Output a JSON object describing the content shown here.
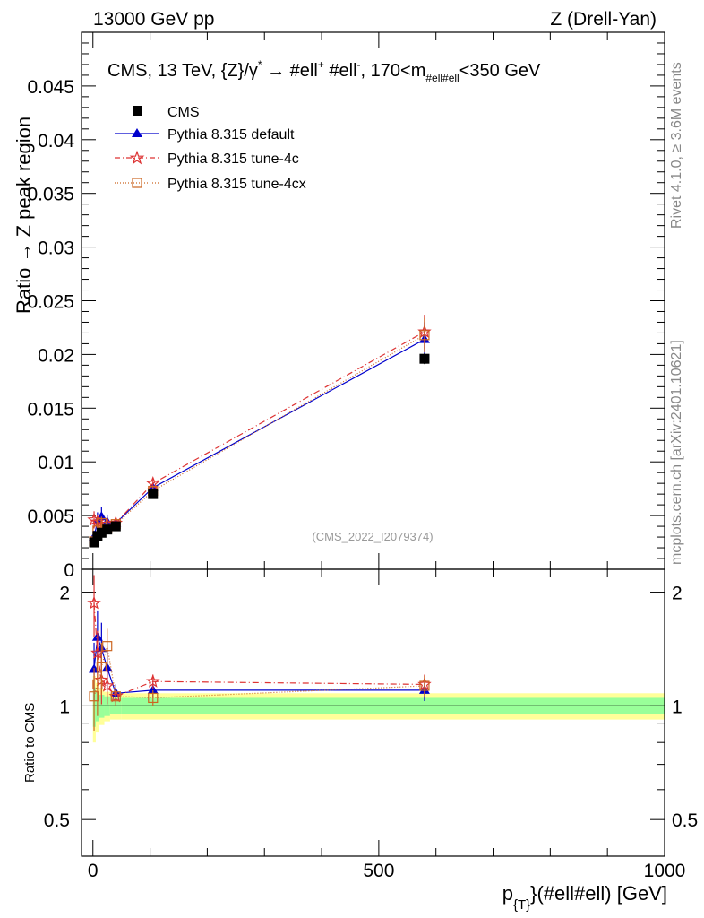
{
  "header": {
    "left": "13000 GeV pp",
    "right": "Z (Drell-Yan)"
  },
  "side_labels": {
    "rivet": "Rivet 4.1.0, ≥ 3.6M events",
    "mcplots": "mcplots.cern.ch [arXiv:2401.10621]"
  },
  "watermark": "(CMS_2022_I2079374)",
  "colors": {
    "cms": "#000000",
    "default": "#0000cc",
    "tune4c": "#dd3333",
    "tune4cx": "#cc6622",
    "band_inner": "#99ff99",
    "band_outer": "#ffff99"
  },
  "chart_data": [
    {
      "type": "scatter",
      "title": "CMS, 13 TeV, {Z}/γ* → #ell⁺ #ell⁻, 170<m_{#ell#ell}<350 GeV",
      "title_parts": {
        "main": "CMS, 13 TeV, {Z}/γ",
        "star": "*",
        "arrow": "→",
        "ell": "#ell",
        "plus": "+",
        "ell2": "#ell",
        "minus": "-",
        "range": ", 170<m",
        "sub": "#ell#ell",
        "end": "<350 GeV"
      },
      "ylabel": "Ratio → Z peak region",
      "xlim": [
        -20,
        1000
      ],
      "ylim": [
        0,
        0.05
      ],
      "yticks": [
        0,
        0.005,
        0.01,
        0.015,
        0.02,
        0.025,
        0.03,
        0.035,
        0.04,
        0.045
      ],
      "ytick_labels": [
        "0",
        "0.005",
        "0.01",
        "0.015",
        "0.02",
        "0.025",
        "0.03",
        "0.035",
        "0.04",
        "0.045"
      ],
      "legend_position": "top-left",
      "series": [
        {
          "name": "CMS",
          "key": "cms",
          "marker": "square",
          "x": [
            2,
            8,
            15,
            25,
            40,
            105,
            580
          ],
          "y": [
            0.0025,
            0.0031,
            0.0034,
            0.0037,
            0.004,
            0.007,
            0.0196
          ],
          "err": [
            0.0002,
            0.0002,
            0.0002,
            0.0002,
            0.0002,
            0.0003,
            0.0005
          ]
        },
        {
          "name": "Pythia 8.315 default",
          "key": "default",
          "marker": "triangle",
          "x": [
            2,
            8,
            15,
            25,
            40,
            105,
            580
          ],
          "y": [
            0.003,
            0.0045,
            0.0049,
            0.0044,
            0.0043,
            0.0076,
            0.0214
          ],
          "err": [
            0.0006,
            0.0008,
            0.0009,
            0.0007,
            0.0003,
            0.0004,
            0.0016
          ]
        },
        {
          "name": "Pythia 8.315 tune-4c",
          "key": "tune4c",
          "marker": "star",
          "x": [
            2,
            8,
            15,
            25,
            40,
            105,
            580
          ],
          "y": [
            0.0046,
            0.0044,
            0.004,
            0.0042,
            0.0043,
            0.008,
            0.0221
          ],
          "err": [
            0.0008,
            0.0006,
            0.0006,
            0.0005,
            0.0003,
            0.0004,
            0.0016
          ]
        },
        {
          "name": "Pythia 8.315 tune-4cx",
          "key": "tune4cx",
          "marker": "open-square",
          "x": [
            2,
            8,
            15,
            25,
            40,
            105,
            580
          ],
          "y": [
            0.0026,
            0.0036,
            0.0043,
            0.0038,
            0.0042,
            0.0073,
            0.0218
          ],
          "err": [
            0.0004,
            0.0005,
            0.0006,
            0.0005,
            0.0003,
            0.0004,
            0.0016
          ]
        }
      ]
    },
    {
      "type": "line",
      "title": "",
      "ylabel": "Ratio to CMS",
      "xlabel": "p_{T}(#ell#ell) [GeV]",
      "xlabel_parts": {
        "p": "p",
        "sub": "{T}",
        "rest": "}(#ell#ell) [GeV]"
      },
      "xlim": [
        -20,
        1000
      ],
      "ylim": [
        0.4,
        2.3
      ],
      "xticks": [
        0,
        500,
        1000
      ],
      "xtick_labels": [
        "0",
        "500",
        "1000"
      ],
      "yticks": [
        0.5,
        1,
        2
      ],
      "ytick_labels": [
        "0.5",
        "1",
        "2"
      ],
      "reference_line": 1,
      "band": {
        "x_edges": [
          0,
          5,
          10,
          20,
          30,
          50,
          1000
        ],
        "inner": [
          0.12,
          0.09,
          0.07,
          0.06,
          0.05,
          0.05
        ],
        "outer": [
          0.2,
          0.15,
          0.11,
          0.09,
          0.08,
          0.08
        ]
      },
      "series": [
        {
          "name": "Pythia 8.315 default",
          "key": "default",
          "marker": "triangle",
          "x": [
            2,
            8,
            15,
            25,
            40,
            105,
            580
          ],
          "y": [
            1.25,
            1.52,
            1.42,
            1.26,
            1.08,
            1.1,
            1.1
          ],
          "err": [
            0.22,
            0.27,
            0.24,
            0.16,
            0.06,
            0.05,
            0.07
          ]
        },
        {
          "name": "Pythia 8.315 tune-4c",
          "key": "tune4c",
          "marker": "star",
          "x": [
            2,
            8,
            15,
            25,
            40,
            105,
            580
          ],
          "y": [
            1.87,
            1.38,
            1.17,
            1.13,
            1.06,
            1.16,
            1.14
          ],
          "err": [
            0.35,
            0.2,
            0.16,
            0.12,
            0.06,
            0.05,
            0.07
          ]
        },
        {
          "name": "Pythia 8.315 tune-4cx",
          "key": "tune4cx",
          "marker": "open-square",
          "x": [
            2,
            8,
            15,
            25,
            40,
            105,
            580
          ],
          "y": [
            1.06,
            1.14,
            1.27,
            1.44,
            1.06,
            1.05,
            1.13
          ],
          "err": [
            0.2,
            0.2,
            0.2,
            0.16,
            0.06,
            0.05,
            0.07
          ]
        }
      ]
    }
  ]
}
